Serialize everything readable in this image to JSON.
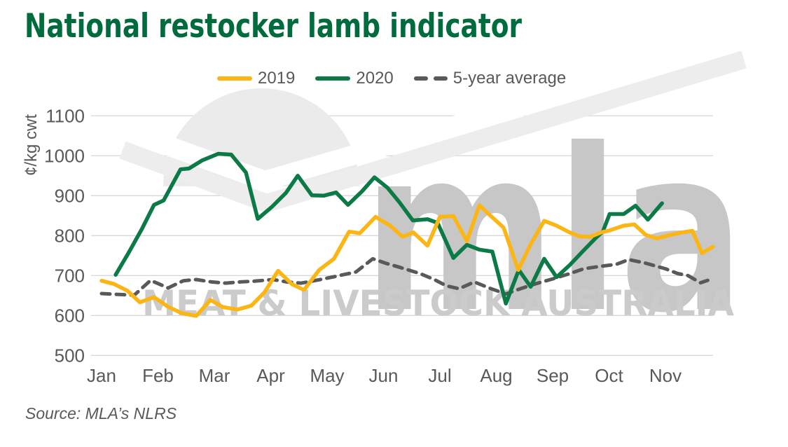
{
  "source": "Source: MLA’s NLRS",
  "legend": [
    {
      "label": "2019",
      "color": "#FBB615"
    },
    {
      "label": "2020",
      "color": "#0B7A46"
    },
    {
      "label": "5-year average",
      "color": "#595959"
    }
  ],
  "watermark": {
    "logo_text": "mla",
    "subtext": "MEAT & LIVESTOCK AUSTRALIA"
  },
  "colors": {
    "title": "#006B3C",
    "axis_text": "#595959",
    "gridline": "#d9d9d9",
    "watermark_gray": "#c7c7c7",
    "background": "#ffffff"
  },
  "chart_data": {
    "type": "line",
    "title": "National restocker lamb indicator",
    "ylabel": "¢/kg cwt",
    "ylim": [
      500,
      1100
    ],
    "y_ticks": [
      500,
      600,
      700,
      800,
      900,
      1000,
      1100
    ],
    "x_tick_labels": [
      "Jan",
      "Feb",
      "Mar",
      "Apr",
      "May",
      "Jun",
      "Jul",
      "Aug",
      "Sep",
      "Oct",
      "Nov"
    ],
    "x_unit": "months since Jan tick (weekly data points)",
    "grid": "horizontal",
    "legend_position": "top",
    "series": [
      {
        "name": "5-year average",
        "color": "#595959",
        "width": 5,
        "dash": "12 9",
        "points": [
          [
            0.0,
            655
          ],
          [
            0.25,
            653
          ],
          [
            0.58,
            651
          ],
          [
            0.87,
            688
          ],
          [
            1.18,
            669
          ],
          [
            1.45,
            687
          ],
          [
            1.68,
            690
          ],
          [
            1.95,
            684
          ],
          [
            2.2,
            681
          ],
          [
            2.46,
            684
          ],
          [
            2.71,
            686
          ],
          [
            3.04,
            690
          ],
          [
            3.29,
            684
          ],
          [
            3.54,
            681
          ],
          [
            3.81,
            688
          ],
          [
            4.12,
            697
          ],
          [
            4.51,
            709
          ],
          [
            4.81,
            742
          ],
          [
            5.06,
            730
          ],
          [
            5.28,
            721
          ],
          [
            5.65,
            705
          ],
          [
            5.9,
            690
          ],
          [
            6.12,
            674
          ],
          [
            6.34,
            667
          ],
          [
            6.61,
            684
          ],
          [
            6.89,
            668
          ],
          [
            7.17,
            654
          ],
          [
            7.45,
            668
          ],
          [
            7.71,
            680
          ],
          [
            8.01,
            692
          ],
          [
            8.3,
            705
          ],
          [
            8.55,
            717
          ],
          [
            8.84,
            723
          ],
          [
            9.13,
            728
          ],
          [
            9.35,
            740
          ],
          [
            9.65,
            731
          ],
          [
            10.0,
            717
          ],
          [
            10.22,
            705
          ],
          [
            10.4,
            700
          ],
          [
            10.62,
            682
          ],
          [
            10.75,
            688
          ]
        ]
      },
      {
        "name": "2020",
        "color": "#0B7A46",
        "width": 5.5,
        "dash": null,
        "points": [
          [
            0.25,
            702
          ],
          [
            0.48,
            757
          ],
          [
            0.72,
            818
          ],
          [
            0.93,
            877
          ],
          [
            1.1,
            888
          ],
          [
            1.4,
            966
          ],
          [
            1.55,
            968
          ],
          [
            1.78,
            988
          ],
          [
            2.07,
            1005
          ],
          [
            2.3,
            1003
          ],
          [
            2.56,
            958
          ],
          [
            2.77,
            842
          ],
          [
            3.02,
            872
          ],
          [
            3.27,
            907
          ],
          [
            3.48,
            950
          ],
          [
            3.73,
            901
          ],
          [
            3.94,
            900
          ],
          [
            4.16,
            908
          ],
          [
            4.37,
            877
          ],
          [
            4.62,
            911
          ],
          [
            4.84,
            946
          ],
          [
            5.07,
            920
          ],
          [
            5.28,
            884
          ],
          [
            5.52,
            838
          ],
          [
            5.78,
            841
          ],
          [
            5.96,
            832
          ],
          [
            6.24,
            744
          ],
          [
            6.48,
            777
          ],
          [
            6.7,
            765
          ],
          [
            6.93,
            760
          ],
          [
            7.17,
            630
          ],
          [
            7.4,
            714
          ],
          [
            7.61,
            672
          ],
          [
            7.85,
            742
          ],
          [
            8.07,
            696
          ],
          [
            8.3,
            726
          ],
          [
            8.55,
            763
          ],
          [
            8.77,
            795
          ],
          [
            8.89,
            810
          ],
          [
            9.01,
            854
          ],
          [
            9.26,
            854
          ],
          [
            9.47,
            875
          ],
          [
            9.69,
            840
          ],
          [
            9.94,
            881
          ]
        ]
      },
      {
        "name": "2019",
        "color": "#FBB615",
        "width": 5.5,
        "dash": null,
        "points": [
          [
            0.0,
            687
          ],
          [
            0.22,
            679
          ],
          [
            0.46,
            662
          ],
          [
            0.68,
            633
          ],
          [
            0.93,
            646
          ],
          [
            1.18,
            622
          ],
          [
            1.42,
            606
          ],
          [
            1.68,
            599
          ],
          [
            1.93,
            639
          ],
          [
            2.15,
            621
          ],
          [
            2.41,
            615
          ],
          [
            2.66,
            625
          ],
          [
            2.89,
            658
          ],
          [
            3.13,
            712
          ],
          [
            3.38,
            678
          ],
          [
            3.59,
            664
          ],
          [
            3.86,
            714
          ],
          [
            4.12,
            742
          ],
          [
            4.39,
            810
          ],
          [
            4.58,
            806
          ],
          [
            4.86,
            847
          ],
          [
            5.12,
            825
          ],
          [
            5.34,
            797
          ],
          [
            5.53,
            808
          ],
          [
            5.78,
            775
          ],
          [
            6.0,
            847
          ],
          [
            6.24,
            849
          ],
          [
            6.48,
            786
          ],
          [
            6.7,
            876
          ],
          [
            6.89,
            851
          ],
          [
            7.13,
            820
          ],
          [
            7.39,
            714
          ],
          [
            7.61,
            778
          ],
          [
            7.85,
            837
          ],
          [
            8.07,
            825
          ],
          [
            8.3,
            808
          ],
          [
            8.48,
            798
          ],
          [
            8.67,
            797
          ],
          [
            8.86,
            808
          ],
          [
            9.01,
            813
          ],
          [
            9.26,
            825
          ],
          [
            9.45,
            828
          ],
          [
            9.65,
            802
          ],
          [
            9.85,
            793
          ],
          [
            10.09,
            802
          ],
          [
            10.3,
            808
          ],
          [
            10.48,
            812
          ],
          [
            10.65,
            756
          ],
          [
            10.84,
            772
          ]
        ]
      }
    ]
  }
}
